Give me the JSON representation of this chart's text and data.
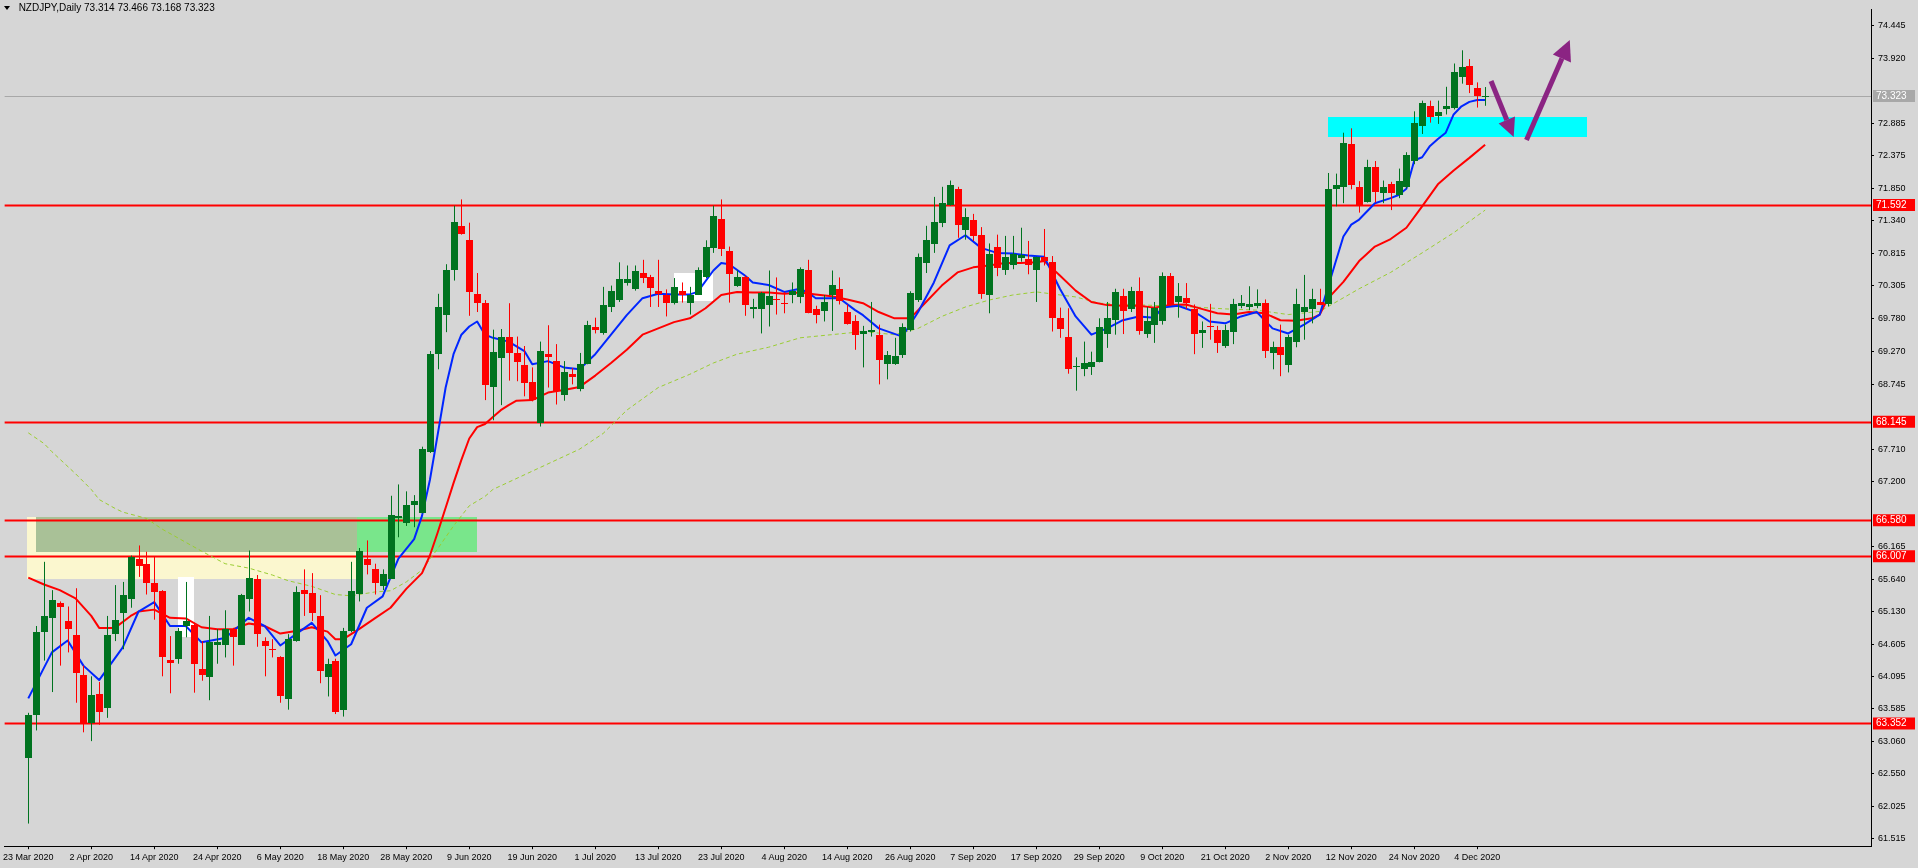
{
  "chart_data": {
    "type": "candlestick",
    "title": "NZDJPY,Daily 73.314 73.466 73.168 73.323",
    "categories": [
      "23 Mar 2020",
      null,
      null,
      null,
      null,
      null,
      null,
      null,
      "2 Apr 2020",
      null,
      null,
      null,
      null,
      null,
      null,
      null,
      "14 Apr 2020",
      null,
      null,
      null,
      null,
      null,
      null,
      null,
      "24 Apr 2020",
      null,
      null,
      null,
      null,
      null,
      null,
      null,
      "6 May 2020",
      null,
      null,
      null,
      null,
      null,
      null,
      null,
      "18 May 2020",
      null,
      null,
      null,
      null,
      null,
      null,
      null,
      "28 May 2020",
      null,
      null,
      null,
      null,
      null,
      null,
      null,
      "9 Jun 2020",
      null,
      null,
      null,
      null,
      null,
      null,
      null,
      "19 Jun 2020",
      null,
      null,
      null,
      null,
      null,
      null,
      null,
      "1 Jul 2020",
      null,
      null,
      null,
      null,
      null,
      null,
      null,
      "13 Jul 2020",
      null,
      null,
      null,
      null,
      null,
      null,
      null,
      "23 Jul 2020",
      null,
      null,
      null,
      null,
      null,
      null,
      null,
      "4 Aug 2020",
      null,
      null,
      null,
      null,
      null,
      null,
      null,
      "14 Aug 2020",
      null,
      null,
      null,
      null,
      null,
      null,
      null,
      "26 Aug 2020",
      null,
      null,
      null,
      null,
      null,
      null,
      null,
      "7 Sep 2020",
      null,
      null,
      null,
      null,
      null,
      null,
      null,
      "17 Sep 2020",
      null,
      null,
      null,
      null,
      null,
      null,
      null,
      "29 Sep 2020",
      null,
      null,
      null,
      null,
      null,
      null,
      null,
      "9 Oct 2020",
      null,
      null,
      null,
      null,
      null,
      null,
      null,
      "21 Oct 2020",
      null,
      null,
      null,
      null,
      null,
      null,
      null,
      "2 Nov 2020",
      null,
      null,
      null,
      null,
      null,
      null,
      null,
      "12 Nov 2020",
      null,
      null,
      null,
      null,
      null,
      null,
      null,
      "24 Nov 2020",
      null,
      null,
      null,
      null,
      null,
      null,
      null,
      "4 Dec 2020",
      null
    ],
    "ohlc": [
      [
        62.81,
        63.52,
        61.76,
        63.49
      ],
      [
        63.49,
        64.9,
        63.24,
        64.81
      ],
      [
        64.8,
        65.92,
        64.35,
        65.06
      ],
      [
        65.03,
        65.47,
        63.85,
        65.31
      ],
      [
        65.26,
        65.29,
        64.27,
        65.19
      ],
      [
        64.98,
        65.21,
        64.48,
        64.85
      ],
      [
        64.76,
        65.5,
        63.68,
        64.15
      ],
      [
        64.12,
        64.27,
        63.21,
        63.36
      ],
      [
        63.36,
        64.1,
        63.07,
        63.8
      ],
      [
        63.82,
        64.01,
        63.33,
        63.54
      ],
      [
        63.6,
        65.06,
        63.44,
        64.76
      ],
      [
        64.77,
        65.55,
        64.66,
        65.0
      ],
      [
        65.11,
        65.6,
        64.53,
        65.39
      ],
      [
        65.34,
        66.02,
        65.19,
        66.0
      ],
      [
        65.97,
        66.18,
        65.68,
        65.86
      ],
      [
        65.89,
        66.08,
        65.4,
        65.59
      ],
      [
        65.59,
        66.0,
        65.0,
        65.45
      ],
      [
        65.46,
        65.47,
        64.1,
        64.41
      ],
      [
        64.36,
        64.74,
        63.83,
        64.31
      ],
      [
        64.38,
        64.87,
        64.3,
        64.82
      ],
      [
        64.9,
        65.6,
        64.72,
        64.98
      ],
      [
        64.92,
        64.95,
        63.84,
        64.3
      ],
      [
        64.22,
        64.66,
        64.03,
        64.13
      ],
      [
        64.09,
        65.06,
        63.72,
        64.64
      ],
      [
        64.59,
        64.85,
        64.3,
        64.64
      ],
      [
        64.61,
        65.15,
        64.4,
        64.86
      ],
      [
        64.85,
        64.87,
        64.27,
        64.73
      ],
      [
        64.61,
        65.41,
        64.6,
        65.4
      ],
      [
        65.33,
        66.1,
        65.13,
        65.67
      ],
      [
        65.65,
        65.71,
        64.57,
        64.78
      ],
      [
        64.66,
        64.72,
        64.1,
        64.58
      ],
      [
        64.53,
        64.69,
        64.4,
        64.51
      ],
      [
        64.41,
        64.42,
        63.68,
        63.79
      ],
      [
        63.73,
        64.77,
        63.57,
        64.69
      ],
      [
        64.66,
        65.53,
        64.65,
        65.44
      ],
      [
        65.47,
        65.8,
        65.06,
        65.4
      ],
      [
        65.42,
        65.74,
        64.98,
        65.11
      ],
      [
        65.06,
        65.39,
        63.99,
        64.18
      ],
      [
        64.1,
        64.38,
        63.78,
        64.3
      ],
      [
        64.34,
        64.38,
        63.5,
        63.53
      ],
      [
        63.56,
        64.87,
        63.46,
        64.82
      ],
      [
        64.81,
        65.92,
        64.8,
        65.45
      ],
      [
        65.4,
        66.14,
        65.29,
        66.09
      ],
      [
        65.97,
        66.26,
        65.72,
        65.87
      ],
      [
        65.8,
        65.89,
        65.4,
        65.58
      ],
      [
        65.54,
        65.8,
        65.47,
        65.73
      ],
      [
        65.66,
        66.97,
        65.65,
        66.67
      ],
      [
        66.62,
        67.15,
        66.31,
        66.65
      ],
      [
        66.55,
        67.04,
        66.49,
        66.83
      ],
      [
        66.82,
        66.98,
        66.47,
        66.89
      ],
      [
        66.7,
        67.75,
        66.69,
        67.72
      ],
      [
        67.67,
        69.27,
        67.65,
        69.23
      ],
      [
        69.22,
        70.18,
        68.98,
        69.97
      ],
      [
        69.85,
        70.65,
        69.57,
        70.56
      ],
      [
        70.55,
        71.58,
        70.39,
        71.32
      ],
      [
        71.26,
        71.68,
        71.12,
        71.14
      ],
      [
        71.03,
        71.31,
        69.83,
        70.2
      ],
      [
        70.18,
        70.51,
        69.89,
        70.03
      ],
      [
        70.03,
        70.08,
        68.49,
        68.72
      ],
      [
        68.7,
        69.61,
        68.17,
        69.26
      ],
      [
        69.15,
        69.62,
        68.41,
        69.49
      ],
      [
        69.49,
        70.03,
        68.8,
        69.24
      ],
      [
        69.24,
        69.5,
        68.79,
        69.1
      ],
      [
        69.05,
        69.35,
        68.55,
        68.76
      ],
      [
        68.77,
        69.01,
        68.47,
        68.48
      ],
      [
        68.13,
        69.42,
        68.07,
        69.27
      ],
      [
        69.22,
        69.68,
        68.69,
        69.17
      ],
      [
        69.11,
        69.38,
        68.42,
        68.63
      ],
      [
        68.56,
        69.11,
        68.48,
        68.93
      ],
      [
        68.9,
        69.0,
        68.74,
        68.85
      ],
      [
        68.67,
        69.24,
        68.63,
        69.06
      ],
      [
        69.07,
        69.75,
        69.06,
        69.69
      ],
      [
        69.66,
        69.8,
        69.55,
        69.62
      ],
      [
        69.55,
        70.29,
        69.53,
        70.0
      ],
      [
        69.97,
        70.31,
        69.89,
        70.22
      ],
      [
        70.08,
        70.68,
        70.05,
        70.41
      ],
      [
        70.35,
        70.63,
        70.31,
        70.41
      ],
      [
        70.26,
        70.63,
        70.23,
        70.55
      ],
      [
        70.51,
        70.72,
        70.35,
        70.43
      ],
      [
        70.44,
        70.48,
        69.97,
        70.27
      ],
      [
        70.23,
        70.72,
        69.97,
        70.18
      ],
      [
        70.16,
        70.25,
        69.82,
        70.04
      ],
      [
        70.04,
        70.43,
        70.01,
        70.29
      ],
      [
        70.23,
        70.36,
        70.04,
        70.16
      ],
      [
        70.04,
        70.29,
        69.85,
        70.16
      ],
      [
        70.17,
        70.6,
        70.16,
        70.56
      ],
      [
        70.46,
        71.03,
        70.43,
        70.93
      ],
      [
        70.9,
        71.58,
        70.83,
        71.41
      ],
      [
        71.37,
        71.68,
        70.78,
        70.9
      ],
      [
        70.86,
        70.93,
        70.04,
        70.5
      ],
      [
        70.3,
        70.55,
        70.29,
        70.44
      ],
      [
        70.44,
        70.47,
        69.83,
        70.0
      ],
      [
        69.94,
        70.1,
        69.79,
        69.97
      ],
      [
        69.95,
        70.21,
        69.55,
        70.2
      ],
      [
        69.99,
        70.55,
        69.66,
        70.14
      ],
      [
        70.09,
        70.44,
        69.85,
        70.07
      ],
      [
        70.03,
        70.21,
        69.87,
        70.01
      ],
      [
        70.16,
        70.36,
        70.03,
        70.22
      ],
      [
        70.14,
        70.6,
        70.03,
        70.58
      ],
      [
        70.56,
        70.72,
        69.87,
        69.88
      ],
      [
        69.94,
        69.99,
        69.71,
        69.85
      ],
      [
        69.9,
        70.16,
        69.74,
        70.05
      ],
      [
        70.16,
        70.55,
        69.59,
        70.32
      ],
      [
        70.25,
        70.44,
        70.01,
        70.06
      ],
      [
        69.89,
        70.01,
        69.69,
        69.7
      ],
      [
        69.75,
        69.84,
        69.29,
        69.52
      ],
      [
        69.54,
        69.67,
        69.01,
        69.59
      ],
      [
        69.57,
        70.05,
        69.5,
        69.6
      ],
      [
        69.53,
        69.69,
        68.74,
        69.14
      ],
      [
        69.07,
        69.27,
        68.82,
        69.21
      ],
      [
        69.07,
        69.48,
        69.05,
        69.19
      ],
      [
        69.22,
        69.71,
        69.16,
        69.66
      ],
      [
        69.61,
        70.22,
        69.58,
        70.2
      ],
      [
        70.08,
        70.82,
        70.05,
        70.76
      ],
      [
        70.67,
        71.26,
        70.51,
        71.03
      ],
      [
        70.97,
        71.72,
        70.83,
        71.32
      ],
      [
        71.32,
        71.88,
        71.24,
        71.63
      ],
      [
        71.59,
        71.98,
        71.58,
        71.91
      ],
      [
        71.85,
        71.88,
        71.07,
        71.28
      ],
      [
        71.2,
        71.54,
        71.04,
        71.4
      ],
      [
        71.36,
        71.45,
        71.02,
        71.11
      ],
      [
        71.11,
        71.24,
        70.1,
        70.18
      ],
      [
        70.16,
        70.98,
        69.87,
        70.81
      ],
      [
        70.93,
        71.12,
        70.46,
        70.6
      ],
      [
        70.55,
        71.1,
        70.48,
        70.76
      ],
      [
        70.65,
        71.1,
        70.57,
        70.82
      ],
      [
        70.74,
        71.23,
        70.69,
        70.79
      ],
      [
        70.74,
        71.02,
        70.49,
        70.65
      ],
      [
        70.55,
        70.77,
        70.05,
        70.76
      ],
      [
        70.76,
        71.21,
        70.63,
        70.69
      ],
      [
        70.68,
        70.78,
        69.58,
        69.79
      ],
      [
        69.8,
        69.96,
        69.48,
        69.63
      ],
      [
        69.5,
        69.95,
        68.91,
        68.99
      ],
      [
        69.01,
        69.17,
        68.64,
        69.03
      ],
      [
        68.99,
        69.42,
        68.87,
        69.08
      ],
      [
        69.02,
        69.26,
        68.89,
        69.1
      ],
      [
        69.1,
        69.79,
        69.09,
        69.66
      ],
      [
        69.53,
        70.05,
        69.32,
        69.79
      ],
      [
        69.76,
        70.26,
        69.53,
        70.21
      ],
      [
        70.14,
        70.26,
        69.54,
        69.9
      ],
      [
        69.94,
        70.29,
        69.89,
        70.23
      ],
      [
        70.22,
        70.44,
        69.53,
        69.58
      ],
      [
        69.54,
        69.97,
        69.48,
        69.74
      ],
      [
        69.69,
        70.05,
        69.4,
        69.96
      ],
      [
        69.75,
        70.52,
        69.69,
        70.46
      ],
      [
        70.46,
        70.51,
        69.99,
        70.0
      ],
      [
        70.04,
        70.35,
        69.8,
        70.14
      ],
      [
        70.11,
        70.35,
        69.94,
        70.03
      ],
      [
        69.94,
        70.01,
        69.22,
        69.54
      ],
      [
        69.57,
        69.74,
        69.32,
        69.61
      ],
      [
        69.67,
        70.02,
        69.45,
        69.66
      ],
      [
        69.61,
        69.67,
        69.24,
        69.41
      ],
      [
        69.36,
        69.69,
        69.32,
        69.61
      ],
      [
        69.58,
        70.1,
        69.38,
        70.02
      ],
      [
        69.99,
        70.16,
        69.95,
        70.04
      ],
      [
        69.97,
        70.3,
        69.92,
        70.01
      ],
      [
        69.99,
        70.25,
        69.95,
        70.04
      ],
      [
        70.03,
        70.09,
        69.16,
        69.26
      ],
      [
        69.23,
        69.42,
        68.98,
        69.33
      ],
      [
        69.33,
        69.69,
        68.87,
        69.21
      ],
      [
        69.05,
        69.53,
        68.93,
        69.5
      ],
      [
        69.41,
        70.26,
        69.33,
        70.02
      ],
      [
        69.89,
        70.48,
        69.45,
        69.97
      ],
      [
        69.94,
        70.26,
        69.71,
        70.1
      ],
      [
        70.05,
        70.26,
        70.0,
        70.01
      ],
      [
        70.02,
        72.1,
        69.98,
        71.85
      ],
      [
        71.85,
        72.09,
        71.57,
        71.91
      ],
      [
        71.87,
        72.74,
        71.62,
        72.57
      ],
      [
        72.56,
        72.81,
        71.84,
        71.91
      ],
      [
        71.88,
        71.97,
        71.47,
        71.59
      ],
      [
        71.64,
        72.31,
        71.63,
        72.2
      ],
      [
        72.2,
        72.29,
        71.63,
        71.8
      ],
      [
        71.78,
        71.98,
        71.62,
        71.88
      ],
      [
        71.92,
        71.96,
        71.51,
        71.77
      ],
      [
        71.75,
        72.17,
        71.7,
        71.97
      ],
      [
        71.87,
        72.43,
        71.85,
        72.38
      ],
      [
        72.29,
        73.08,
        72.24,
        72.9
      ],
      [
        72.85,
        73.25,
        72.72,
        73.21
      ],
      [
        73.17,
        73.25,
        72.9,
        73.0
      ],
      [
        73.0,
        73.25,
        72.88,
        73.07
      ],
      [
        73.12,
        73.47,
        73.03,
        73.16
      ],
      [
        73.13,
        73.84,
        73.11,
        73.71
      ],
      [
        73.63,
        74.05,
        73.52,
        73.79
      ],
      [
        73.8,
        73.91,
        73.37,
        73.5
      ],
      [
        73.45,
        73.54,
        73.14,
        73.33
      ],
      [
        73.314,
        73.466,
        73.168,
        73.323
      ]
    ],
    "series": [
      {
        "type": "line",
        "color": "#0026ff",
        "values": [
          63.75,
          null,
          null,
          64.48,
          null,
          64.67,
          null,
          64.27,
          null,
          64.04,
          null,
          null,
          64.56,
          null,
          65.13,
          null,
          65.28,
          null,
          64.9,
          null,
          64.9,
          null,
          64.64,
          null,
          null,
          64.71,
          null,
          null,
          65.03,
          null,
          64.9,
          null,
          64.59,
          null,
          64.77,
          null,
          64.95,
          null,
          64.66,
          64.43,
          null,
          64.61,
          null,
          65.19,
          null,
          65.37,
          null,
          65.97,
          null,
          66.28,
          66.65,
          67.22,
          67.95,
          68.69,
          69.22,
          69.53,
          69.66,
          69.74,
          69.53,
          69.48,
          null,
          69.42,
          null,
          69.27,
          69.06,
          null,
          69.11,
          null,
          69.01,
          null,
          68.98,
          null,
          69.22,
          null,
          69.53,
          null,
          69.84,
          null,
          70.11,
          null,
          70.18,
          null,
          70.17,
          null,
          70.17,
          70.21,
          null,
          70.55,
          70.67,
          70.65,
          null,
          70.47,
          70.36,
          null,
          70.32,
          null,
          70.21,
          null,
          70.26,
          70.2,
          70.11,
          null,
          null,
          70.11,
          null,
          69.92,
          69.84,
          null,
          69.63,
          null,
          null,
          69.5,
          null,
          69.89,
          null,
          70.36,
          null,
          70.95,
          null,
          71.11,
          null,
          70.91,
          null,
          70.83,
          null,
          70.82,
          null,
          70.79,
          null,
          70.77,
          null,
          70.26,
          null,
          69.82,
          null,
          69.53,
          null,
          69.63,
          null,
          69.76,
          null,
          69.82,
          null,
          69.8,
          69.96,
          null,
          69.99,
          null,
          69.9,
          null,
          69.74,
          null,
          69.71,
          null,
          69.82,
          null,
          69.89,
          null,
          69.63,
          null,
          69.55,
          null,
          69.69,
          null,
          69.85,
          null,
          70.68,
          71.09,
          71.28,
          71.36,
          null,
          71.62,
          null,
          71.7,
          71.75,
          71.85,
          72.3,
          72.35,
          72.53,
          72.64,
          72.74,
          73.03,
          73.16,
          73.23,
          73.26,
          73.26
        ]
      },
      {
        "type": "line",
        "color": "#ff0000",
        "values": [
          65.67,
          null,
          65.56,
          null,
          65.47,
          null,
          65.34,
          null,
          65.06,
          64.87,
          null,
          64.87,
          null,
          65.06,
          65.13,
          null,
          65.16,
          null,
          65.03,
          null,
          65.02,
          null,
          64.88,
          null,
          64.85,
          null,
          64.85,
          null,
          64.94,
          null,
          64.9,
          null,
          64.78,
          null,
          64.82,
          null,
          64.88,
          null,
          64.81,
          64.69,
          64.69,
          null,
          64.85,
          null,
          65.02,
          null,
          65.19,
          null,
          65.49,
          null,
          65.74,
          66.02,
          66.39,
          66.78,
          67.17,
          67.54,
          67.88,
          68.06,
          68.11,
          68.22,
          68.33,
          68.41,
          68.48,
          null,
          68.49,
          null,
          68.61,
          null,
          68.65,
          null,
          68.7,
          null,
          68.88,
          null,
          69.08,
          null,
          69.29,
          null,
          69.53,
          null,
          69.63,
          null,
          69.73,
          null,
          69.79,
          null,
          69.95,
          null,
          70.16,
          null,
          70.21,
          null,
          70.2,
          null,
          70.2,
          null,
          70.18,
          null,
          70.2,
          null,
          70.17,
          null,
          70.14,
          null,
          70.09,
          null,
          70.03,
          null,
          69.89,
          null,
          69.79,
          null,
          69.79,
          null,
          70.05,
          null,
          70.31,
          null,
          70.52,
          null,
          70.6,
          null,
          70.63,
          null,
          70.67,
          null,
          70.67,
          null,
          70.68,
          70.7,
          null,
          70.47,
          null,
          70.23,
          null,
          70.05,
          null,
          70.0,
          null,
          69.99,
          null,
          69.99,
          null,
          69.96,
          null,
          70.0,
          null,
          70.01,
          null,
          69.94,
          null,
          69.87,
          null,
          69.85,
          null,
          69.89,
          null,
          69.87,
          null,
          69.76,
          null,
          69.75,
          null,
          69.79,
          69.85,
          70.1,
          null,
          70.37,
          null,
          70.7,
          null,
          70.93,
          null,
          71.05,
          null,
          71.23,
          null,
          71.57,
          null,
          71.92,
          null,
          72.14,
          null,
          72.34,
          null,
          72.55
        ]
      },
      {
        "type": "line",
        "color": "#9acd32",
        "line_style": "dashed",
        "values": [
          67.97,
          null,
          67.8,
          67.67,
          null,
          null,
          67.32,
          null,
          67.07,
          66.91,
          null,
          66.77,
          66.71,
          null,
          null,
          66.61,
          null,
          66.44,
          null,
          null,
          66.23,
          null,
          66.09,
          null,
          null,
          65.89,
          null,
          null,
          65.82,
          null,
          null,
          65.71,
          null,
          65.62,
          null,
          null,
          65.53,
          null,
          null,
          65.4,
          null,
          65.38,
          null,
          null,
          65.44,
          null,
          65.46,
          null,
          65.6,
          null,
          65.79,
          null,
          66.13,
          null,
          66.49,
          null,
          66.81,
          null,
          66.96,
          67.07,
          null,
          null,
          null,
          null,
          null,
          null,
          null,
          null,
          null,
          null,
          67.71,
          null,
          null,
          67.96,
          null,
          null,
          68.33,
          null,
          null,
          null,
          68.69,
          null,
          null,
          null,
          68.9,
          null,
          null,
          69.08,
          null,
          null,
          69.22,
          null,
          null,
          null,
          69.33,
          null,
          null,
          null,
          69.48,
          null,
          null,
          null,
          69.53,
          null,
          null,
          null,
          69.58,
          null,
          null,
          null,
          69.53,
          null,
          null,
          69.63,
          null,
          null,
          69.82,
          null,
          null,
          69.97,
          null,
          null,
          70.08,
          null,
          null,
          70.16,
          null,
          null,
          70.21,
          null,
          null,
          null,
          null,
          70.13,
          null,
          null,
          70.03,
          null,
          null,
          null,
          null,
          null,
          null,
          null,
          null,
          null,
          null,
          null,
          69.97,
          null,
          null,
          null,
          69.94,
          null,
          null,
          null,
          69.92,
          null,
          null,
          null,
          69.85,
          null,
          null,
          null,
          69.9,
          null,
          null,
          null,
          null,
          70.26,
          null,
          null,
          null,
          70.52,
          null,
          null,
          null,
          70.83,
          null,
          null,
          null,
          71.15,
          null,
          null,
          null,
          71.51
        ]
      }
    ],
    "ylim": [
      61.4,
      74.7
    ],
    "yticks": [
      74.445,
      {
        "value": 73.92,
        "label": "73.920"
      },
      72.885,
      72.375,
      {
        "value": 71.85,
        "label": "71.850"
      },
      {
        "value": 71.34,
        "label": "71.340"
      },
      70.815,
      70.305,
      {
        "value": 69.78,
        "label": "69.780"
      },
      {
        "value": 69.27,
        "label": "69.270"
      },
      68.745,
      {
        "value": 67.71,
        "label": "67.710"
      },
      {
        "value": 67.2,
        "label": "67.200"
      },
      66.165,
      {
        "value": 65.64,
        "label": "65.640"
      },
      {
        "value": 65.13,
        "label": "65.130"
      },
      64.605,
      64.095,
      63.585,
      {
        "value": 63.06,
        "label": "63.060"
      },
      {
        "value": 62.55,
        "label": "62.550"
      },
      62.025,
      61.515
    ],
    "ref_lines": [
      {
        "axis": "y",
        "value": 73.323,
        "label": "73.323",
        "color": "#a8a8a8"
      },
      {
        "axis": "y",
        "value": 71.592,
        "label": "71.592",
        "color": "#ff0000"
      },
      {
        "axis": "y",
        "value": 68.145,
        "label": "68.145",
        "color": "#ff0000"
      },
      {
        "axis": "y",
        "value": 66.58,
        "label": "66.580",
        "color": "#ff0000"
      },
      {
        "axis": "y",
        "value": 66.007,
        "label": "66.007",
        "color": "#ff0000"
      },
      {
        "axis": "y",
        "value": 63.352,
        "label": "63.352",
        "color": "#ff0000"
      }
    ]
  }
}
